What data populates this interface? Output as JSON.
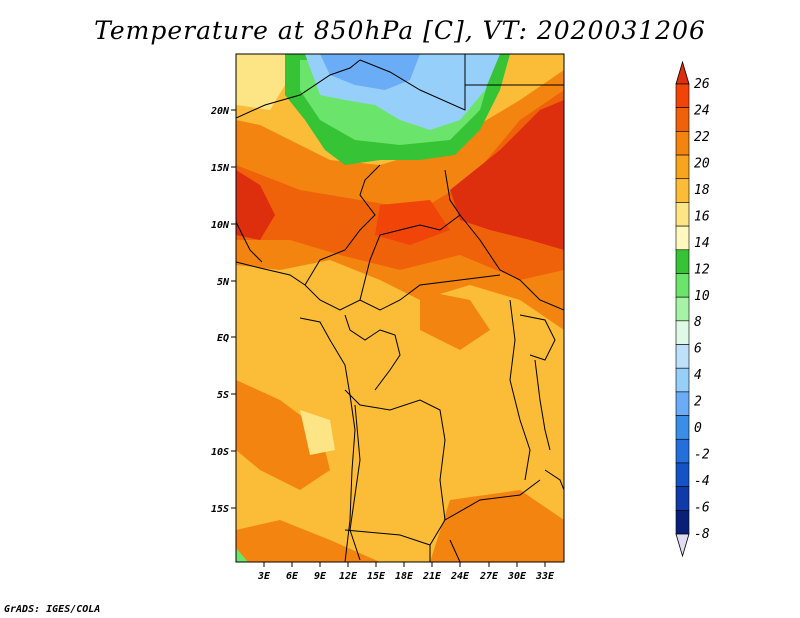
{
  "title": "Temperature at 850hPa [C], VT: 2020031206",
  "credit": "GrADS: IGES/COLA",
  "latitude_labels": [
    "20N",
    "15N",
    "10N",
    "5N",
    "EQ",
    "5S",
    "10S",
    "15S"
  ],
  "longitude_labels": [
    "3E",
    "6E",
    "9E",
    "12E",
    "15E",
    "18E",
    "21E",
    "24E",
    "27E",
    "30E",
    "33E"
  ],
  "colorbar": {
    "labels": [
      "26",
      "24",
      "22",
      "20",
      "18",
      "16",
      "14",
      "12",
      "10",
      "8",
      "6",
      "4",
      "2",
      "0",
      "-2",
      "-4",
      "-6",
      "-8"
    ],
    "colors": [
      "#dd2e0d",
      "#f04408",
      "#f0620a",
      "#f38410",
      "#f7a51f",
      "#fbbc37",
      "#fde585",
      "#fff8bf",
      "#36c336",
      "#6be46b",
      "#a6f2a6",
      "#dff8e8",
      "#bfe0fa",
      "#96d0fa",
      "#6aacf5",
      "#3b8ee8",
      "#236fdc",
      "#1453c3",
      "#0f3ba8",
      "#0a1f78",
      "#e0dcf2"
    ]
  },
  "color_names": {
    "hot": "#dd2e0d",
    "warm": "#f0620a",
    "mild": "#fbbc37",
    "cool_green": "#36c336",
    "cold_blue": "#96d0fa"
  }
}
